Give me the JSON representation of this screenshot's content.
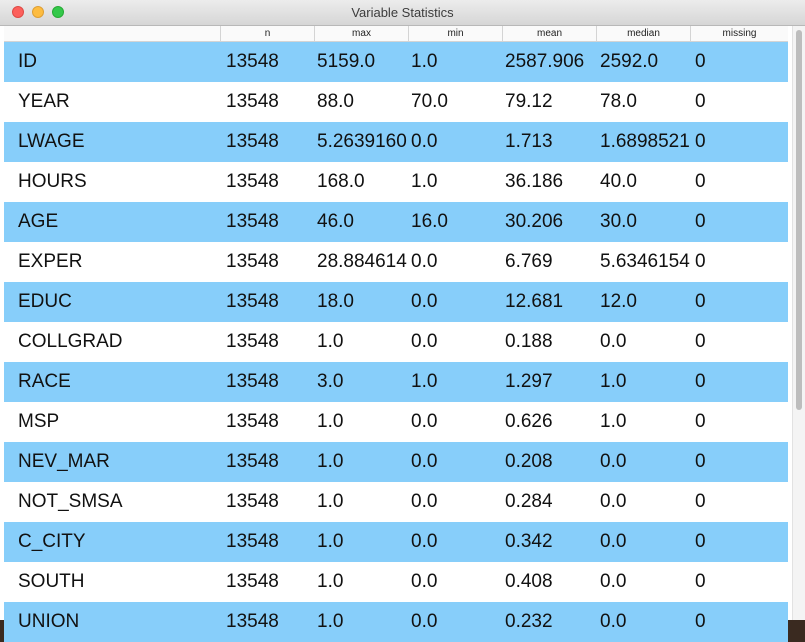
{
  "window": {
    "title": "Variable Statistics"
  },
  "columns": [
    "",
    "n",
    "max",
    "min",
    "mean",
    "median",
    "missing"
  ],
  "rows": [
    [
      "ID",
      "13548",
      "5159.0",
      "1.0",
      "2587.906",
      "2592.0",
      "0"
    ],
    [
      "YEAR",
      "13548",
      "88.0",
      "70.0",
      "79.12",
      "78.0",
      "0"
    ],
    [
      "LWAGE",
      "13548",
      "5.2639160",
      "0.0",
      "1.713",
      "1.6898521",
      "0"
    ],
    [
      "HOURS",
      "13548",
      "168.0",
      "1.0",
      "36.186",
      "40.0",
      "0"
    ],
    [
      "AGE",
      "13548",
      "46.0",
      "16.0",
      "30.206",
      "30.0",
      "0"
    ],
    [
      "EXPER",
      "13548",
      "28.884614",
      "0.0",
      "6.769",
      "5.6346154",
      "0"
    ],
    [
      "EDUC",
      "13548",
      "18.0",
      "0.0",
      "12.681",
      "12.0",
      "0"
    ],
    [
      "COLLGRAD",
      "13548",
      "1.0",
      "0.0",
      "0.188",
      "0.0",
      "0"
    ],
    [
      "RACE",
      "13548",
      "3.0",
      "1.0",
      "1.297",
      "1.0",
      "0"
    ],
    [
      "MSP",
      "13548",
      "1.0",
      "0.0",
      "0.626",
      "1.0",
      "0"
    ],
    [
      "NEV_MAR",
      "13548",
      "1.0",
      "0.0",
      "0.208",
      "0.0",
      "0"
    ],
    [
      "NOT_SMSA",
      "13548",
      "1.0",
      "0.0",
      "0.284",
      "0.0",
      "0"
    ],
    [
      "C_CITY",
      "13548",
      "1.0",
      "0.0",
      "0.342",
      "0.0",
      "0"
    ],
    [
      "SOUTH",
      "13548",
      "1.0",
      "0.0",
      "0.408",
      "0.0",
      "0"
    ],
    [
      "UNION",
      "13548",
      "1.0",
      "0.0",
      "0.232",
      "0.0",
      "0"
    ]
  ],
  "colors": {
    "row_alt": "#87cefa",
    "row_plain": "#ffffff"
  }
}
